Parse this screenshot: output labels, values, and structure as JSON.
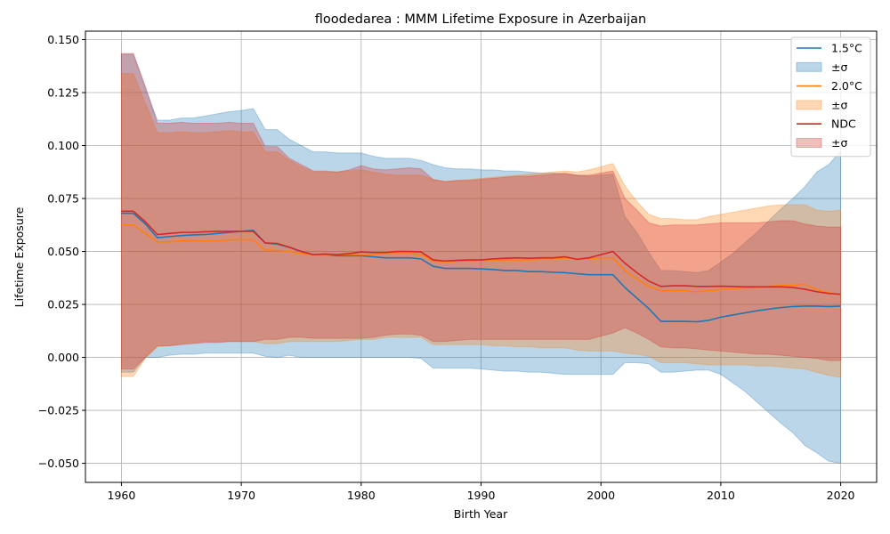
{
  "chart_data": {
    "type": "area",
    "title": "floodedarea : MMM Lifetime Exposure in Azerbaijan",
    "xlabel": "Birth Year",
    "ylabel": "Lifetime Exposure",
    "xlim": [
      1957,
      2023
    ],
    "ylim": [
      -0.059,
      0.154
    ],
    "xticks": [
      1960,
      1970,
      1980,
      1990,
      2000,
      2010,
      2020
    ],
    "yticks": [
      -0.05,
      -0.025,
      0.0,
      0.025,
      0.05,
      0.075,
      0.1,
      0.125,
      0.15
    ],
    "xtick_labels": [
      "1960",
      "1970",
      "1980",
      "1990",
      "2000",
      "2010",
      "2020"
    ],
    "ytick_labels": [
      "−0.050",
      "−0.025",
      "0.000",
      "0.025",
      "0.050",
      "0.075",
      "0.100",
      "0.125",
      "0.150"
    ],
    "grid": true,
    "legend_position": "top-right",
    "x": [
      1960,
      1961,
      1962,
      1963,
      1964,
      1965,
      1966,
      1967,
      1968,
      1969,
      1970,
      1971,
      1972,
      1973,
      1974,
      1975,
      1976,
      1977,
      1978,
      1979,
      1980,
      1981,
      1982,
      1983,
      1984,
      1985,
      1986,
      1987,
      1988,
      1989,
      1990,
      1991,
      1992,
      1993,
      1994,
      1995,
      1996,
      1997,
      1998,
      1999,
      2000,
      2001,
      2002,
      2003,
      2004,
      2005,
      2006,
      2007,
      2008,
      2009,
      2010,
      2011,
      2012,
      2013,
      2014,
      2015,
      2016,
      2017,
      2018,
      2019,
      2020
    ],
    "series": [
      {
        "name": "1.5°C",
        "band_label": "±σ",
        "color": "#1f77b4",
        "values": [
          0.068,
          0.068,
          0.063,
          0.0565,
          0.057,
          0.0575,
          0.0578,
          0.058,
          0.0585,
          0.059,
          0.0595,
          0.06,
          0.054,
          0.0535,
          0.052,
          0.05,
          0.0485,
          0.0485,
          0.048,
          0.048,
          0.048,
          0.0475,
          0.047,
          0.047,
          0.047,
          0.0465,
          0.043,
          0.042,
          0.042,
          0.042,
          0.0418,
          0.0415,
          0.041,
          0.041,
          0.0405,
          0.0405,
          0.0402,
          0.04,
          0.0395,
          0.039,
          0.039,
          0.039,
          0.033,
          0.028,
          0.023,
          0.017,
          0.017,
          0.017,
          0.0168,
          0.0175,
          0.019,
          0.02,
          0.021,
          0.022,
          0.0228,
          0.0235,
          0.024,
          0.0242,
          0.0242,
          0.024,
          0.0242
        ],
        "upper": [
          0.143,
          0.143,
          0.127,
          0.112,
          0.112,
          0.113,
          0.113,
          0.114,
          0.115,
          0.116,
          0.1165,
          0.1175,
          0.1075,
          0.1075,
          0.103,
          0.1,
          0.097,
          0.097,
          0.0965,
          0.0965,
          0.0965,
          0.095,
          0.094,
          0.094,
          0.094,
          0.093,
          0.091,
          0.0895,
          0.089,
          0.089,
          0.0885,
          0.0885,
          0.088,
          0.088,
          0.0875,
          0.087,
          0.087,
          0.0865,
          0.086,
          0.0855,
          0.086,
          0.0865,
          0.0665,
          0.059,
          0.0495,
          0.041,
          0.041,
          0.0405,
          0.04,
          0.041,
          0.045,
          0.049,
          0.054,
          0.059,
          0.0645,
          0.07,
          0.075,
          0.0805,
          0.0875,
          0.091,
          0.0975
        ],
        "lower": [
          -0.007,
          -0.007,
          0.0,
          0.0,
          0.001,
          0.0015,
          0.0015,
          0.002,
          0.002,
          0.002,
          0.002,
          0.002,
          0.0005,
          0.0,
          0.001,
          0.0,
          0.0,
          0.0,
          0.0,
          0.0,
          0.0,
          0.0,
          0.0,
          0.0,
          0.0,
          -0.0005,
          -0.005,
          -0.005,
          -0.005,
          -0.005,
          -0.0055,
          -0.006,
          -0.0065,
          -0.0065,
          -0.007,
          -0.007,
          -0.0075,
          -0.008,
          -0.008,
          -0.008,
          -0.008,
          -0.008,
          -0.0025,
          -0.0025,
          -0.003,
          -0.007,
          -0.007,
          -0.0065,
          -0.006,
          -0.006,
          -0.008,
          -0.012,
          -0.016,
          -0.021,
          -0.026,
          -0.031,
          -0.0355,
          -0.0415,
          -0.045,
          -0.049,
          -0.05
        ]
      },
      {
        "name": "2.0°C",
        "band_label": "±σ",
        "color": "#ff7f0e",
        "values": [
          0.0625,
          0.0625,
          0.0585,
          0.0545,
          0.0545,
          0.055,
          0.055,
          0.055,
          0.055,
          0.0555,
          0.0555,
          0.0555,
          0.0505,
          0.0505,
          0.05,
          0.049,
          0.0485,
          0.0485,
          0.0485,
          0.0485,
          0.0485,
          0.0485,
          0.049,
          0.049,
          0.049,
          0.0485,
          0.0455,
          0.045,
          0.0455,
          0.0455,
          0.046,
          0.046,
          0.046,
          0.046,
          0.046,
          0.0465,
          0.0465,
          0.047,
          0.0465,
          0.0465,
          0.047,
          0.047,
          0.041,
          0.037,
          0.0335,
          0.0315,
          0.0315,
          0.0315,
          0.031,
          0.0315,
          0.032,
          0.0325,
          0.0328,
          0.033,
          0.0335,
          0.034,
          0.034,
          0.0345,
          0.032,
          0.0305,
          0.0295
        ],
        "upper": [
          0.134,
          0.134,
          0.12,
          0.106,
          0.106,
          0.1065,
          0.106,
          0.106,
          0.1065,
          0.107,
          0.1065,
          0.1065,
          0.097,
          0.097,
          0.093,
          0.09,
          0.0875,
          0.0875,
          0.0875,
          0.088,
          0.0885,
          0.0875,
          0.0865,
          0.086,
          0.086,
          0.086,
          0.084,
          0.083,
          0.0835,
          0.084,
          0.0845,
          0.085,
          0.0855,
          0.086,
          0.0865,
          0.087,
          0.0875,
          0.088,
          0.0875,
          0.0885,
          0.09,
          0.0915,
          0.081,
          0.0735,
          0.0675,
          0.0655,
          0.0655,
          0.065,
          0.065,
          0.0665,
          0.0675,
          0.0685,
          0.0695,
          0.0705,
          0.0715,
          0.072,
          0.072,
          0.072,
          0.0695,
          0.069,
          0.0695
        ],
        "lower": [
          -0.009,
          -0.009,
          -0.0005,
          0.005,
          0.0055,
          0.0065,
          0.007,
          0.0075,
          0.0075,
          0.0075,
          0.0075,
          0.0075,
          0.0065,
          0.0065,
          0.0075,
          0.0075,
          0.0075,
          0.0075,
          0.0075,
          0.008,
          0.0085,
          0.0085,
          0.0095,
          0.0095,
          0.0095,
          0.0095,
          0.006,
          0.006,
          0.006,
          0.006,
          0.006,
          0.0055,
          0.0055,
          0.005,
          0.005,
          0.0045,
          0.0045,
          0.0045,
          0.0035,
          0.003,
          0.003,
          0.003,
          0.002,
          0.0015,
          0.0005,
          -0.0025,
          -0.0025,
          -0.0025,
          -0.003,
          -0.0035,
          -0.0035,
          -0.0035,
          -0.0035,
          -0.004,
          -0.004,
          -0.0045,
          -0.005,
          -0.0055,
          -0.007,
          -0.0085,
          -0.0095
        ]
      },
      {
        "name": "NDC",
        "band_label": "±σ",
        "color": "#d62728",
        "values": [
          0.069,
          0.069,
          0.064,
          0.058,
          0.0585,
          0.059,
          0.059,
          0.0593,
          0.0595,
          0.0595,
          0.0595,
          0.0595,
          0.054,
          0.0538,
          0.052,
          0.05,
          0.0485,
          0.0488,
          0.0485,
          0.049,
          0.0498,
          0.0495,
          0.0495,
          0.05,
          0.05,
          0.0498,
          0.046,
          0.0455,
          0.0458,
          0.046,
          0.046,
          0.0465,
          0.0468,
          0.047,
          0.0468,
          0.047,
          0.047,
          0.0475,
          0.0463,
          0.047,
          0.0485,
          0.05,
          0.0445,
          0.04,
          0.036,
          0.0335,
          0.0338,
          0.0338,
          0.0335,
          0.0335,
          0.0336,
          0.0335,
          0.0333,
          0.0333,
          0.0333,
          0.0333,
          0.033,
          0.0322,
          0.031,
          0.0302,
          0.0298
        ],
        "upper": [
          0.1435,
          0.1435,
          0.128,
          0.1105,
          0.1105,
          0.111,
          0.1105,
          0.1105,
          0.1105,
          0.111,
          0.1105,
          0.1105,
          0.0995,
          0.0995,
          0.094,
          0.091,
          0.088,
          0.088,
          0.0875,
          0.0885,
          0.0905,
          0.089,
          0.0885,
          0.089,
          0.0895,
          0.089,
          0.084,
          0.083,
          0.0835,
          0.0835,
          0.084,
          0.0845,
          0.085,
          0.0855,
          0.0855,
          0.086,
          0.0865,
          0.087,
          0.086,
          0.086,
          0.087,
          0.088,
          0.075,
          0.0695,
          0.0635,
          0.062,
          0.0625,
          0.0625,
          0.0625,
          0.063,
          0.0635,
          0.0635,
          0.0635,
          0.0635,
          0.064,
          0.0645,
          0.0645,
          0.063,
          0.062,
          0.0615,
          0.0615
        ],
        "lower": [
          -0.0055,
          -0.0055,
          0.0,
          0.0055,
          0.0055,
          0.006,
          0.0065,
          0.007,
          0.007,
          0.0075,
          0.0075,
          0.0075,
          0.0085,
          0.0085,
          0.0095,
          0.0095,
          0.009,
          0.009,
          0.009,
          0.009,
          0.009,
          0.0095,
          0.0105,
          0.011,
          0.011,
          0.0105,
          0.0075,
          0.0075,
          0.008,
          0.0085,
          0.0085,
          0.0085,
          0.0085,
          0.0085,
          0.0085,
          0.0085,
          0.0085,
          0.0085,
          0.0085,
          0.0085,
          0.01,
          0.0115,
          0.014,
          0.0115,
          0.0085,
          0.005,
          0.0045,
          0.0045,
          0.004,
          0.0035,
          0.003,
          0.0025,
          0.002,
          0.0015,
          0.0015,
          0.001,
          0.0005,
          0.0,
          -0.0005,
          -0.0015,
          -0.0015
        ]
      }
    ]
  }
}
